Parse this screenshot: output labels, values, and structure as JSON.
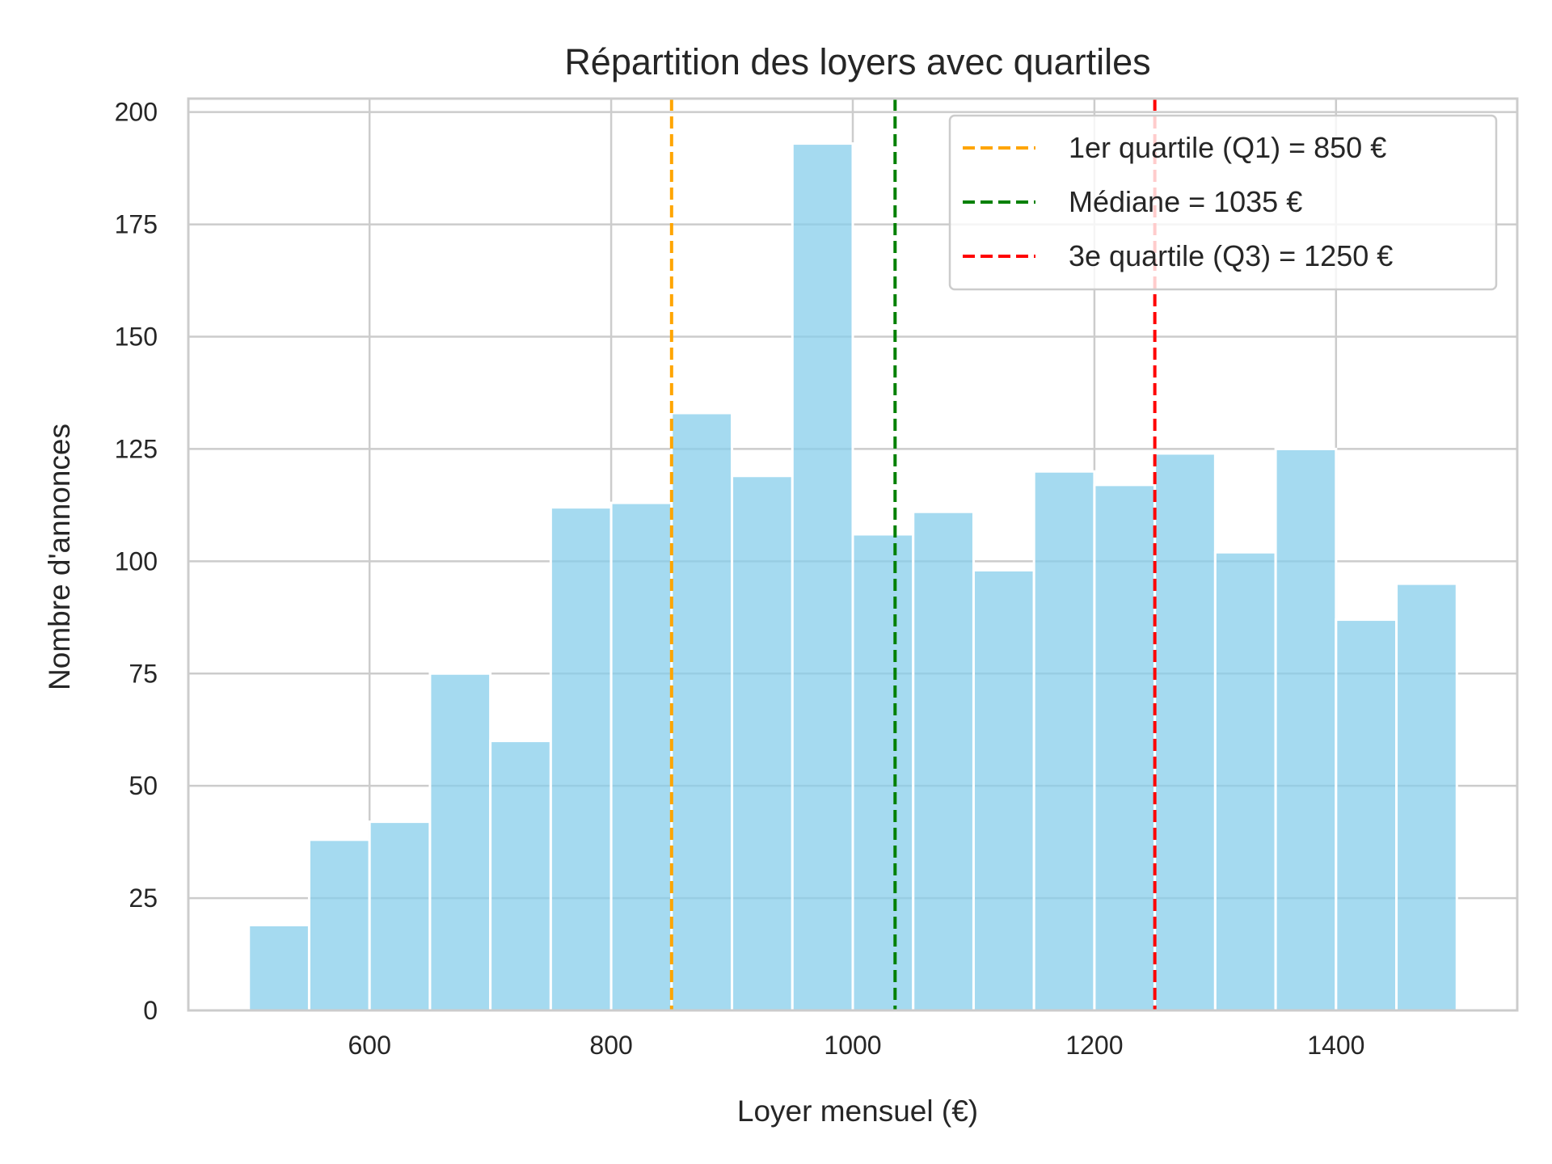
{
  "chart_data": {
    "type": "bar",
    "title": "Répartition des loyers avec quartiles",
    "xlabel": "Loyer mensuel (€)",
    "ylabel": "Nombre d'annonces",
    "xlim": [
      450,
      1550
    ],
    "ylim": [
      0,
      203
    ],
    "xticks": [
      600,
      800,
      1000,
      1200,
      1400
    ],
    "yticks": [
      0,
      25,
      50,
      75,
      100,
      125,
      150,
      175,
      200
    ],
    "grid": true,
    "legend_position": "top-right",
    "bar_color": "#87CEEB",
    "bins": [
      {
        "start": 500,
        "end": 550,
        "count": 19
      },
      {
        "start": 550,
        "end": 600,
        "count": 38
      },
      {
        "start": 600,
        "end": 650,
        "count": 42
      },
      {
        "start": 650,
        "end": 700,
        "count": 75
      },
      {
        "start": 700,
        "end": 750,
        "count": 60
      },
      {
        "start": 750,
        "end": 800,
        "count": 112
      },
      {
        "start": 800,
        "end": 850,
        "count": 113
      },
      {
        "start": 850,
        "end": 900,
        "count": 133
      },
      {
        "start": 900,
        "end": 950,
        "count": 119
      },
      {
        "start": 950,
        "end": 1000,
        "count": 193
      },
      {
        "start": 1000,
        "end": 1050,
        "count": 106
      },
      {
        "start": 1050,
        "end": 1100,
        "count": 111
      },
      {
        "start": 1100,
        "end": 1150,
        "count": 98
      },
      {
        "start": 1150,
        "end": 1200,
        "count": 120
      },
      {
        "start": 1200,
        "end": 1250,
        "count": 117
      },
      {
        "start": 1250,
        "end": 1300,
        "count": 124
      },
      {
        "start": 1300,
        "end": 1350,
        "count": 102
      },
      {
        "start": 1350,
        "end": 1400,
        "count": 125
      },
      {
        "start": 1400,
        "end": 1450,
        "count": 87
      },
      {
        "start": 1450,
        "end": 1500,
        "count": 95
      }
    ],
    "reference_lines": [
      {
        "name": "1er quartile (Q1) = 850 €",
        "value": 850,
        "color": "#FFA500"
      },
      {
        "name": "Médiane = 1035 €",
        "value": 1035,
        "color": "#008000"
      },
      {
        "name": "3e quartile (Q3) = 1250 €",
        "value": 1250,
        "color": "#FF0000"
      }
    ]
  }
}
